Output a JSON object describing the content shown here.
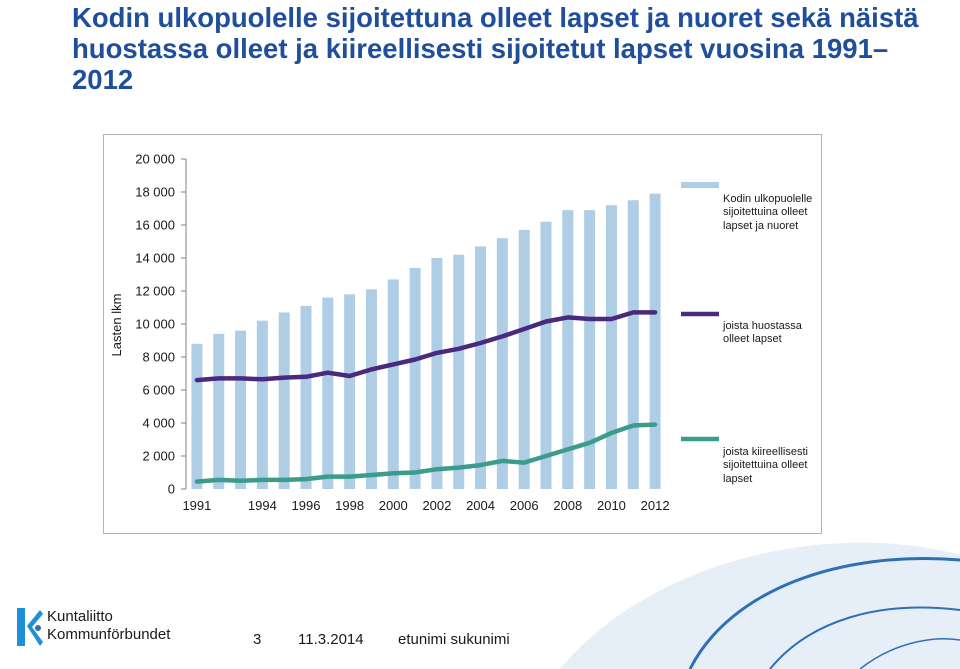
{
  "title": "Kodin ulkopuolelle sijoitettuna olleet lapset ja nuoret sekä näistä huostassa olleet ja kiireellisesti sijoitetut lapset vuosina 1991–2012",
  "colors": {
    "title": "#1f4e9a",
    "bars": "#afcde4",
    "line_custody": "#4a2a7e",
    "line_emergency": "#3b9b8c",
    "decor_blue": "#2f6fb5",
    "logo_blue": "#1e90d6"
  },
  "chart_data": {
    "type": "bar",
    "title": "",
    "xlabel": "",
    "ylabel": "Lasten lkm",
    "ylim": [
      0,
      20000
    ],
    "grid": false,
    "legend_position": "right",
    "categories": [
      "1991",
      "1992",
      "1993",
      "1994",
      "1995",
      "1996",
      "1997",
      "1998",
      "1999",
      "2000",
      "2001",
      "2002",
      "2003",
      "2004",
      "2005",
      "2006",
      "2007",
      "2008",
      "2009",
      "2010",
      "2011",
      "2012"
    ],
    "x_tick_labels": [
      "1991",
      "1994",
      "1996",
      "1998",
      "2000",
      "2002",
      "2004",
      "2006",
      "2008",
      "2010",
      "2012"
    ],
    "y_tick_labels": [
      "0",
      "2 000",
      "4 000",
      "6 000",
      "8 000",
      "10 000",
      "12 000",
      "14 000",
      "16 000",
      "18 000",
      "20 000"
    ],
    "y_ticks": [
      0,
      2000,
      4000,
      6000,
      8000,
      10000,
      12000,
      14000,
      16000,
      18000,
      20000
    ],
    "series": [
      {
        "name": "Kodin ulkopuolelle sijoitettuina olleet lapset  ja nuoret",
        "kind": "bar",
        "values": [
          8800,
          9400,
          9600,
          10200,
          10700,
          11100,
          11600,
          11800,
          12100,
          12700,
          13400,
          14000,
          14200,
          14700,
          15200,
          15700,
          16200,
          16900,
          16900,
          17200,
          17500,
          17900
        ]
      },
      {
        "name": "joista huostassa olleet lapset",
        "kind": "line",
        "values": [
          6600,
          6700,
          6700,
          6650,
          6750,
          6800,
          7050,
          6850,
          7250,
          7550,
          7850,
          8250,
          8500,
          8850,
          9250,
          9700,
          10150,
          10400,
          10300,
          10300,
          10700,
          10700
        ]
      },
      {
        "name": "joista kiireellisesti sijoitettuina olleet lapset",
        "kind": "line",
        "values": [
          450,
          550,
          500,
          550,
          550,
          600,
          750,
          750,
          850,
          950,
          1000,
          1200,
          1300,
          1450,
          1700,
          1600,
          2000,
          2400,
          2800,
          3400,
          3850,
          3900
        ]
      }
    ]
  },
  "logo": {
    "line1": "Kuntaliitto",
    "line2": "Kommunförbundet"
  },
  "footer": {
    "page": "3",
    "date": "11.3.2014",
    "author": "etunimi sukunimi"
  }
}
